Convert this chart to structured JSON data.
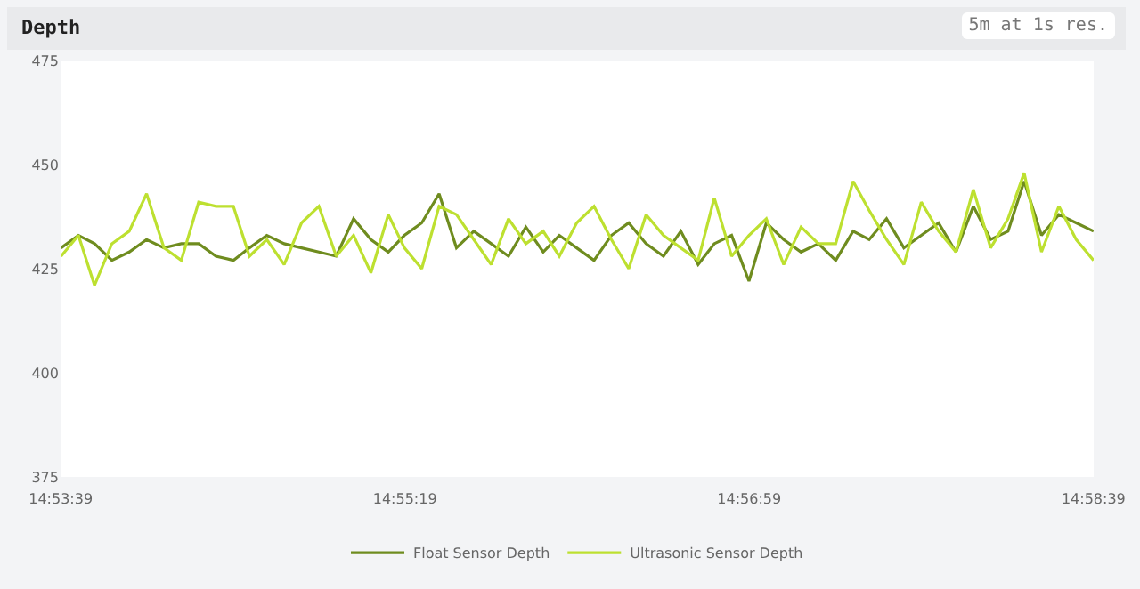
{
  "chart_data": {
    "type": "line",
    "title": "Depth",
    "annotations": [
      "5m at 1s res."
    ],
    "x": [
      14.8942,
      14.8956,
      14.8969,
      14.8983,
      14.8997,
      14.9011,
      14.9025,
      14.9039,
      14.9053,
      14.9067,
      14.9081,
      14.9094,
      14.9108,
      14.9122,
      14.9136,
      14.915,
      14.9164,
      14.9178,
      14.9192,
      14.9206,
      14.9219,
      14.9233,
      14.9247,
      14.9261,
      14.9275,
      14.9289,
      14.9303,
      14.9317,
      14.9331,
      14.9344,
      14.9358,
      14.9372,
      14.9386,
      14.94,
      14.9414,
      14.9428,
      14.9442,
      14.9456,
      14.9469,
      14.9483,
      14.9497,
      14.9511,
      14.9525,
      14.9539,
      14.9553,
      14.9567,
      14.9581,
      14.9594,
      14.9608,
      14.9622,
      14.9636,
      14.965,
      14.9664,
      14.9678,
      14.9692,
      14.9706,
      14.9719,
      14.9733,
      14.9747,
      14.9761,
      14.9775
    ],
    "series": [
      {
        "name": "Float Sensor Depth",
        "color": "#6f8c1f",
        "values": [
          430,
          433,
          431,
          427,
          429,
          432,
          430,
          431,
          431,
          428,
          427,
          430,
          433,
          431,
          430,
          429,
          428,
          437,
          432,
          429,
          433,
          436,
          443,
          430,
          434,
          431,
          428,
          435,
          429,
          433,
          430,
          427,
          433,
          436,
          431,
          428,
          434,
          426,
          431,
          433,
          422,
          436,
          432,
          429,
          431,
          427,
          434,
          432,
          437,
          430,
          433,
          436,
          429,
          440,
          432,
          434,
          446,
          433,
          438,
          436,
          434
        ]
      },
      {
        "name": "Ultrasonic Sensor Depth",
        "color": "#bde030",
        "values": [
          428,
          433,
          421,
          431,
          434,
          443,
          430,
          427,
          441,
          440,
          440,
          428,
          432,
          426,
          436,
          440,
          428,
          433,
          424,
          438,
          430,
          425,
          440,
          438,
          432,
          426,
          437,
          431,
          434,
          428,
          436,
          440,
          432,
          425,
          438,
          433,
          430,
          427,
          442,
          428,
          433,
          437,
          426,
          435,
          431,
          431,
          446,
          439,
          432,
          426,
          441,
          434,
          429,
          444,
          430,
          437,
          448,
          429,
          440,
          432,
          427
        ]
      }
    ],
    "xlim": [
      14.89416,
      14.97751
    ],
    "xticks": [
      {
        "value": 14.89417,
        "label": "14:53:39"
      },
      {
        "value": 14.921944,
        "label": "14:55:19"
      },
      {
        "value": 14.949722,
        "label": "14:56:59"
      },
      {
        "value": 14.9775,
        "label": "14:58:39"
      }
    ],
    "ylim": [
      375,
      475
    ],
    "yticks": [
      375,
      400,
      425,
      450,
      475
    ],
    "grid": false,
    "legend": "bottom",
    "marker": "none",
    "line_style": "solid"
  }
}
